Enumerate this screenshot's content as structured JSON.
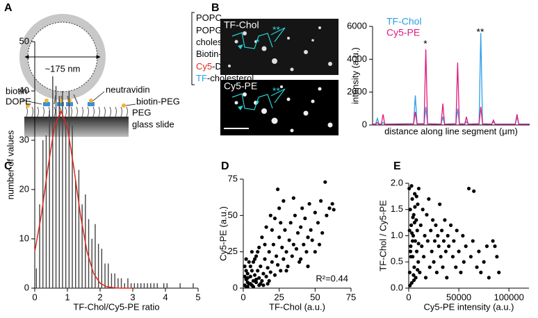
{
  "figure": {
    "panel_labels": [
      "A",
      "B",
      "C",
      "D",
      "E"
    ],
    "panel_a": {
      "diameter": "~175 nm",
      "lipids": [
        [
          "POPC"
        ],
        [
          "POPG"
        ],
        [
          "cholesterol"
        ],
        [
          "Biotin-DOPE"
        ],
        [
          "Cy5",
          "-DOPE"
        ],
        [
          "TF",
          "-cholesterol"
        ]
      ],
      "labels": [
        "biotin-",
        "DOPE",
        "neutravidin",
        "biotin-PEG",
        "PEG",
        "glass slide"
      ]
    },
    "panel_b": {
      "image_labels": [
        "TF-Chol",
        "Cy5-PE"
      ],
      "markers": [
        "*",
        "**"
      ]
    }
  },
  "chart_data": [
    {
      "type": "line",
      "y_label": "intensity (a.u.)",
      "x_label": "distance along line segment (μm)",
      "x": [
        0,
        0.7,
        1.1,
        1.5,
        2.0,
        2.4,
        2.8,
        9.4,
        9.8,
        10.2,
        11.8,
        12.2,
        12.6,
        15.7,
        16.1,
        16.5,
        19.1,
        19.5,
        19.9,
        21.1,
        21.5,
        21.9,
        24.4,
        24.8,
        25.2,
        27.3,
        27.7,
        28.1,
        32.7,
        33.1,
        33.5,
        36
      ],
      "series": [
        {
          "name": "TF-Chol",
          "color": "#2a9fe6",
          "values": [
            60,
            60,
            400,
            60,
            60,
            150,
            60,
            80,
            1800,
            80,
            80,
            1100,
            80,
            60,
            500,
            60,
            80,
            1000,
            80,
            60,
            200,
            60,
            80,
            5600,
            80,
            60,
            200,
            60,
            60,
            500,
            60,
            60
          ]
        },
        {
          "name": "Cy5-PE",
          "color": "#e0197d",
          "values": [
            40,
            40,
            150,
            40,
            40,
            650,
            40,
            60,
            800,
            60,
            60,
            4600,
            60,
            40,
            1300,
            40,
            60,
            3800,
            60,
            40,
            500,
            40,
            60,
            1100,
            60,
            40,
            300,
            40,
            40,
            650,
            40,
            40
          ]
        }
      ],
      "annotations": [
        "*",
        "**"
      ],
      "xlim": [
        0,
        36
      ],
      "ylim": [
        0,
        6000
      ],
      "yticks": [
        0,
        2000,
        4000,
        6000
      ],
      "legend": "upper left"
    },
    {
      "type": "histogram",
      "y_label": "number of values",
      "x_label": "TF-Chol/Cy5-PE ratio",
      "color": "#444444",
      "bins": [
        0,
        0.1,
        0.2,
        0.3,
        0.4,
        0.5,
        0.6,
        0.7,
        0.8,
        0.9,
        1.0,
        1.1,
        1.2,
        1.3,
        1.4,
        1.5,
        1.6,
        1.7,
        1.8,
        1.9,
        2.0,
        2.1,
        2.2,
        2.3,
        2.4,
        2.5,
        2.6,
        2.7,
        2.8,
        2.9,
        3.0,
        3.1,
        3.2,
        3.3,
        3.4,
        3.5,
        3.6,
        3.7,
        3.8,
        3.9,
        4.0,
        4.1,
        4.2,
        4.3,
        4.4,
        4.5,
        4.6,
        4.7,
        4.8,
        4.9,
        5.0
      ],
      "values": [
        4,
        17,
        30,
        31,
        36,
        43,
        41,
        39,
        40,
        34,
        40,
        33,
        22,
        24,
        17,
        19,
        14,
        10,
        13,
        9,
        8,
        5,
        5,
        3,
        3,
        2,
        2,
        1,
        2,
        1,
        1,
        1,
        1,
        1,
        1,
        1,
        1,
        1,
        0,
        1,
        1,
        0,
        0,
        0,
        1,
        0,
        0,
        0,
        1,
        0
      ],
      "fit": {
        "color": "#e0261b",
        "x": [
          0,
          0.2,
          0.4,
          0.6,
          0.8,
          1.0,
          1.2,
          1.4,
          1.6,
          1.8,
          2.0,
          2.2,
          2.4,
          2.6,
          2.8,
          3.0
        ],
        "values": [
          7.4,
          14.8,
          24.3,
          32.6,
          36,
          32.6,
          24.3,
          14.8,
          7.4,
          3.0,
          1.0,
          0.3,
          0.1,
          0,
          0,
          0
        ]
      },
      "xlim": [
        0,
        5
      ],
      "ylim": [
        0,
        50
      ],
      "xticks": [
        0,
        1,
        2,
        3,
        4,
        5
      ],
      "yticks": [
        0,
        10,
        20,
        30,
        40,
        50
      ]
    },
    {
      "type": "scatter",
      "y_label": "Cy5-PE (a.u.)",
      "x_label": "TF-Chol (a.u.)",
      "color": "#000000",
      "annotation": "R²=0.44",
      "x": [
        1,
        2,
        3,
        2,
        4,
        5,
        6,
        7,
        3,
        8,
        9,
        10,
        11,
        12,
        13,
        14,
        15,
        16,
        17,
        18,
        19,
        20,
        21,
        22,
        23,
        24,
        25,
        26,
        27,
        28,
        29,
        30,
        31,
        32,
        33,
        34,
        35,
        36,
        37,
        38,
        39,
        40,
        41,
        42,
        43,
        44,
        45,
        46,
        47,
        48,
        50,
        52,
        54,
        55,
        57,
        58,
        60,
        62,
        63,
        5,
        8,
        10,
        12,
        6,
        4,
        15,
        18,
        20,
        22,
        25,
        28,
        30,
        1,
        2,
        3,
        7,
        9,
        11,
        13,
        16,
        19,
        24,
        26,
        35,
        40,
        45,
        50,
        53,
        14,
        17,
        2,
        6,
        1,
        3,
        5,
        7,
        9,
        11
      ],
      "values": [
        2,
        1,
        4,
        6,
        3,
        8,
        2,
        5,
        10,
        9,
        4,
        12,
        7,
        15,
        5,
        10,
        20,
        8,
        14,
        25,
        11,
        18,
        30,
        9,
        22,
        16,
        35,
        12,
        28,
        20,
        40,
        25,
        15,
        33,
        45,
        22,
        30,
        50,
        27,
        38,
        18,
        42,
        55,
        30,
        48,
        25,
        35,
        58,
        40,
        33,
        52,
        45,
        60,
        38,
        73,
        50,
        55,
        58,
        54,
        15,
        20,
        25,
        3,
        12,
        18,
        30,
        5,
        40,
        48,
        55,
        60,
        12,
        8,
        12,
        1,
        18,
        22,
        28,
        35,
        42,
        50,
        68,
        45,
        62,
        20,
        15,
        25,
        30,
        2,
        3,
        20,
        25,
        15,
        7,
        3,
        1,
        6,
        2
      ],
      "xlim": [
        0,
        75
      ],
      "ylim": [
        0,
        75
      ],
      "xticks": [
        0,
        25,
        50,
        75
      ],
      "yticks": [
        0,
        25,
        50,
        75
      ]
    },
    {
      "type": "scatter",
      "y_label": "TF-Chol / Cy5-PE",
      "x_label": "Cy5-PE intensity (a.u.)",
      "color": "#000000",
      "x": [
        500,
        1000,
        1500,
        2000,
        2500,
        3000,
        3500,
        4000,
        4500,
        5000,
        5500,
        6000,
        6500,
        7000,
        7500,
        8000,
        8500,
        9000,
        9500,
        10000,
        11000,
        12000,
        13000,
        14000,
        15000,
        16000,
        17000,
        18000,
        19000,
        20000,
        21000,
        22000,
        23000,
        24000,
        25000,
        26000,
        27000,
        28000,
        29000,
        30000,
        31000,
        32000,
        33000,
        34000,
        35000,
        36000,
        37000,
        38000,
        39000,
        40000,
        42000,
        44000,
        45000,
        47000,
        48000,
        50000,
        52000,
        54000,
        55000,
        57000,
        60000,
        62000,
        64000,
        65000,
        68000,
        70000,
        72000,
        75000,
        78000,
        80000,
        84000,
        86000,
        88000,
        90000,
        1200,
        2200,
        3200,
        4200,
        5200,
        6200,
        2800,
        1800,
        800,
        3800,
        4800,
        5800,
        7800,
        8800,
        9800
      ],
      "values": [
        1.9,
        0.3,
        1.5,
        0.8,
        1.2,
        0.1,
        1.7,
        0.6,
        1.0,
        1.4,
        0.4,
        1.8,
        0.9,
        0.2,
        1.3,
        0.7,
        1.1,
        1.6,
        0.5,
        1.9,
        0.3,
        1.2,
        0.8,
        1.5,
        0.6,
        1.0,
        0.2,
        1.4,
        0.9,
        1.7,
        0.4,
        1.1,
        0.7,
        1.3,
        0.5,
        0.9,
        1.2,
        0.3,
        1.0,
        0.8,
        1.6,
        0.6,
        1.1,
        0.4,
        0.9,
        1.3,
        0.7,
        0.2,
        1.0,
        0.8,
        1.2,
        0.6,
        0.9,
        0.4,
        1.1,
        0.7,
        0.3,
        1.0,
        0.5,
        0.8,
        1.9,
        0.6,
        0.9,
        1.85,
        0.4,
        0.7,
        0.3,
        0.5,
        0.8,
        0.2,
        0.9,
        0.8,
        0.6,
        0.3,
        0.05,
        0.6,
        1.05,
        1.35,
        0.15,
        1.55,
        1.95,
        0.7,
        1.1,
        0.9,
        0.25,
        1.25,
        1.75,
        0.35,
        0.85
      ],
      "xlim": [
        0,
        120000
      ],
      "ylim": [
        0,
        2.0
      ],
      "xticks": [
        0,
        50000,
        100000
      ],
      "yticks": [
        {
          "value": 0,
          "label": "0.0"
        },
        {
          "value": 0.5,
          "label": "0.5"
        },
        {
          "value": 1,
          "label": "1.0"
        },
        {
          "value": 1.5,
          "label": "1.5"
        },
        {
          "value": 2,
          "label": "2.0"
        }
      ]
    }
  ]
}
